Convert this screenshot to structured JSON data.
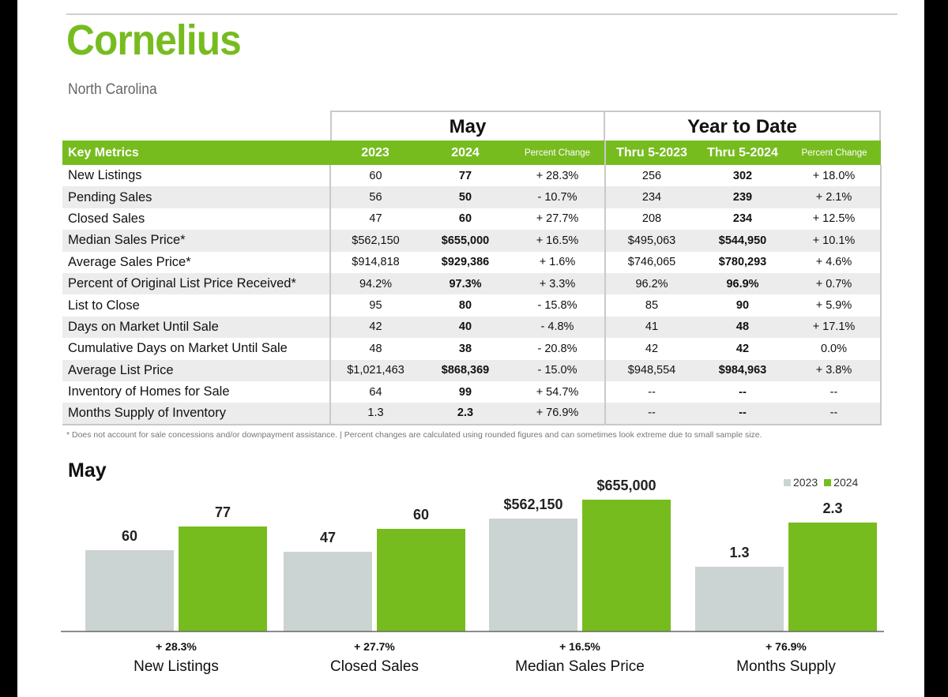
{
  "header": {
    "title": "Cornelius",
    "subtitle": "North Carolina"
  },
  "table": {
    "group_may": "May",
    "group_ytd": "Year to Date",
    "columns": [
      "Key Metrics",
      "2023",
      "2024",
      "Percent Change",
      "Thru 5-2023",
      "Thru 5-2024",
      "Percent Change"
    ],
    "rows": [
      [
        "New Listings",
        "60",
        "77",
        "+ 28.3%",
        "256",
        "302",
        "+ 18.0%"
      ],
      [
        "Pending Sales",
        "56",
        "50",
        "- 10.7%",
        "234",
        "239",
        "+ 2.1%"
      ],
      [
        "Closed Sales",
        "47",
        "60",
        "+ 27.7%",
        "208",
        "234",
        "+ 12.5%"
      ],
      [
        "Median Sales Price*",
        "$562,150",
        "$655,000",
        "+ 16.5%",
        "$495,063",
        "$544,950",
        "+ 10.1%"
      ],
      [
        "Average Sales Price*",
        "$914,818",
        "$929,386",
        "+ 1.6%",
        "$746,065",
        "$780,293",
        "+ 4.6%"
      ],
      [
        "Percent of Original List Price Received*",
        "94.2%",
        "97.3%",
        "+ 3.3%",
        "96.2%",
        "96.9%",
        "+ 0.7%"
      ],
      [
        "List to Close",
        "95",
        "80",
        "- 15.8%",
        "85",
        "90",
        "+ 5.9%"
      ],
      [
        "Days on Market Until Sale",
        "42",
        "40",
        "- 4.8%",
        "41",
        "48",
        "+ 17.1%"
      ],
      [
        "Cumulative Days on Market Until Sale",
        "48",
        "38",
        "- 20.8%",
        "42",
        "42",
        "0.0%"
      ],
      [
        "Average List Price",
        "$1,021,463",
        "$868,369",
        "- 15.0%",
        "$948,554",
        "$984,963",
        "+ 3.8%"
      ],
      [
        "Inventory of Homes for Sale",
        "64",
        "99",
        "+ 54.7%",
        "--",
        "--",
        "--"
      ],
      [
        "Months Supply of Inventory",
        "1.3",
        "2.3",
        "+ 76.9%",
        "--",
        "--",
        "--"
      ]
    ]
  },
  "footnote": "* Does not account for sale concessions and/or downpayment assistance.  |  Percent changes are calculated using rounded figures and can sometimes look extreme due to small sample size.",
  "colors": {
    "accent": "#77bc1f",
    "bar_2023": "#ccd3d3",
    "bar_2024": "#77bc1f"
  },
  "chart_data": {
    "type": "bar",
    "title": "May",
    "categories": [
      "New Listings",
      "Closed Sales",
      "Median Sales Price",
      "Months Supply"
    ],
    "category_changes": [
      "+ 28.3%",
      "+ 27.7%",
      "+ 16.5%",
      "+ 76.9%"
    ],
    "series": [
      {
        "name": "2023",
        "values": [
          60,
          47,
          562150,
          1.3
        ],
        "labels": [
          "60",
          "47",
          "$562,150",
          "1.3"
        ]
      },
      {
        "name": "2024",
        "values": [
          77,
          60,
          655000,
          2.3
        ],
        "labels": [
          "77",
          "60",
          "$655,000",
          "2.3"
        ]
      }
    ],
    "legend": "top-right",
    "grid": false
  }
}
